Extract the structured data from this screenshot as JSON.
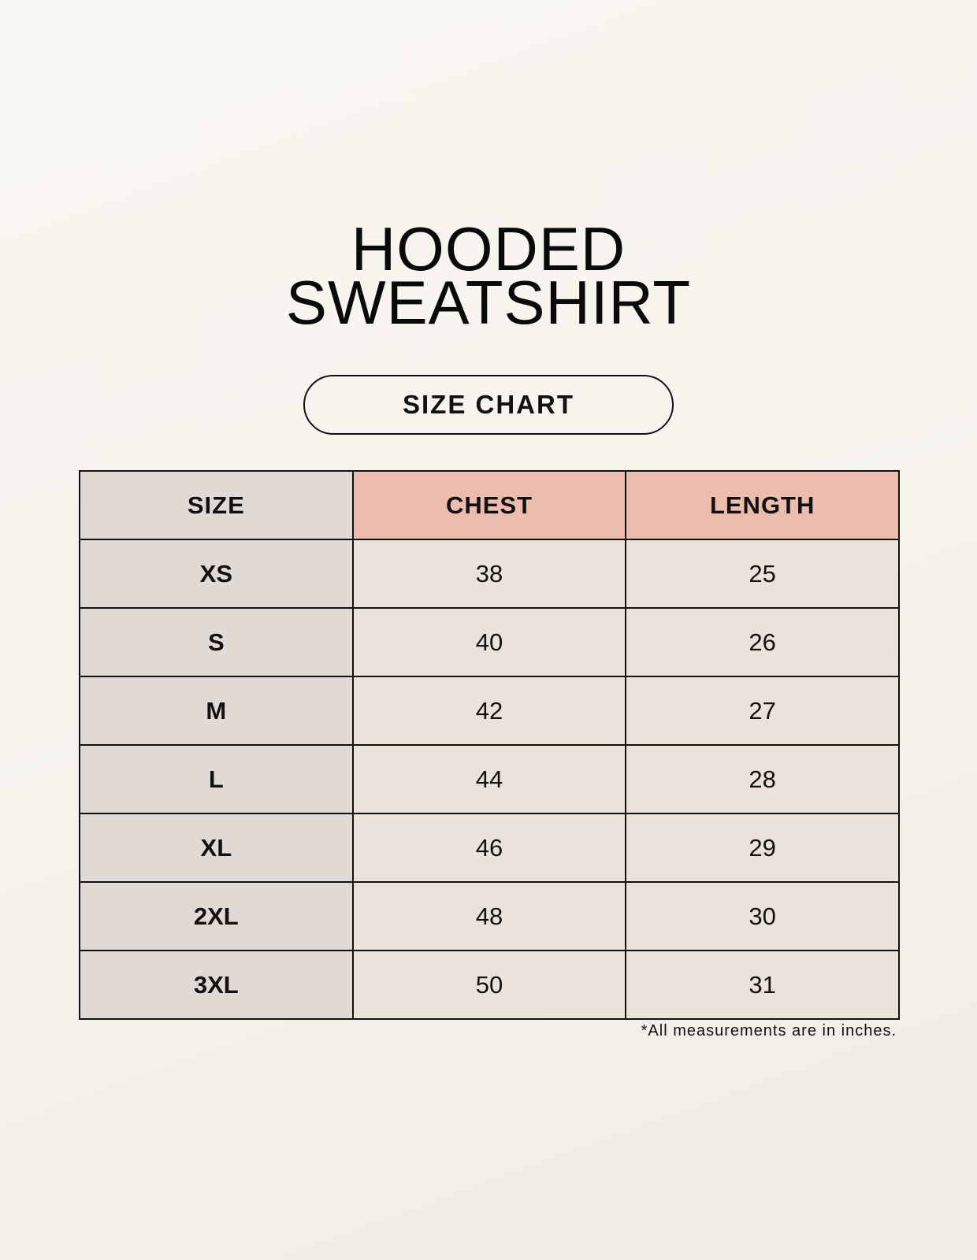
{
  "title_line1": "HOODED",
  "title_line2": "SWEATSHIRT",
  "subtitle": "SIZE CHART",
  "table": {
    "headers": [
      "SIZE",
      "CHEST",
      "LENGTH"
    ],
    "rows": [
      [
        "XS",
        "38",
        "25"
      ],
      [
        "S",
        "40",
        "26"
      ],
      [
        "M",
        "42",
        "27"
      ],
      [
        "L",
        "44",
        "28"
      ],
      [
        "XL",
        "46",
        "29"
      ],
      [
        "2XL",
        "48",
        "30"
      ],
      [
        "3XL",
        "50",
        "31"
      ]
    ]
  },
  "note": "*All measurements are in inches.",
  "colors": {
    "size_column": "#e0d9d4",
    "header_accent": "#ecbcae",
    "cell": "#ebe3d9"
  }
}
